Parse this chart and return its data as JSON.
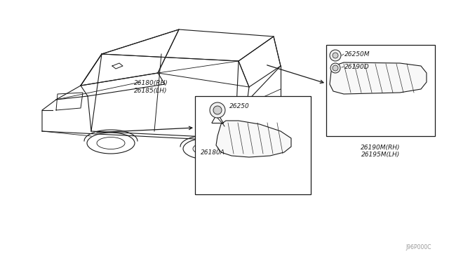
{
  "bg_color": "#ffffff",
  "line_color": "#1a1a1a",
  "fig_width": 6.4,
  "fig_height": 3.72,
  "watermark": "J96P000C",
  "label_front_lamp": "26180(RH)\n26185(LH)",
  "label_rear_lamp": "26190M(RH)\n26195M(LH)",
  "label_front_bulb": "26250",
  "label_front_socket": "26180A",
  "label_rear_bulb_top": "26250M",
  "label_rear_bulb_bot": "26190D"
}
